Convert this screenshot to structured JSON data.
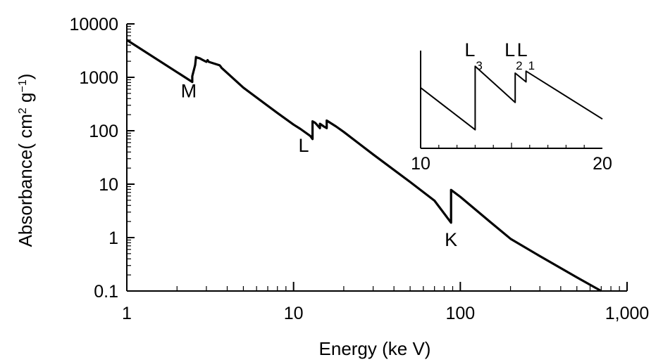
{
  "chart_data": [
    {
      "type": "line",
      "xlabel": "Energy (ke V)",
      "ylabel": {
        "text": "Absorbance",
        "unit_open": "( cm",
        "unit_exp1": "2",
        "unit_g": " g",
        "unit_exp2": "−1",
        "unit_close": ")"
      },
      "x_scale": "log",
      "y_scale": "log",
      "xlim": [
        1,
        1000
      ],
      "ylim": [
        0.1,
        10000
      ],
      "x_ticks": [
        {
          "value": 1,
          "label": "1"
        },
        {
          "value": 10,
          "label": "10"
        },
        {
          "value": 100,
          "label": "100"
        },
        {
          "value": 1000,
          "label": "1,000"
        }
      ],
      "y_ticks": [
        {
          "value": 0.1,
          "label": "0.1"
        },
        {
          "value": 1,
          "label": "1"
        },
        {
          "value": 10,
          "label": "10"
        },
        {
          "value": 100,
          "label": "100"
        },
        {
          "value": 1000,
          "label": "1000"
        },
        {
          "value": 10000,
          "label": "10000"
        }
      ],
      "grid": false,
      "series": [
        {
          "color": "#000000",
          "x": [
            1.0,
            2.47,
            2.47,
            2.57,
            2.6,
            2.63,
            2.75,
            2.8,
            3.0,
            3.05,
            3.1,
            3.6,
            3.65,
            3.7,
            5.0,
            8.0,
            10.0,
            11.0,
            12.6,
            13.0,
            13.0,
            13.5,
            14.4,
            14.4,
            15.2,
            15.8,
            15.8,
            18.0,
            20.0,
            30.0,
            50.0,
            70.0,
            88.0,
            88.0,
            100.0,
            150.0,
            200.0,
            300.0,
            500.0,
            700.0
          ],
          "y": [
            5000,
            820,
            1050,
            1700,
            2400,
            2350,
            2250,
            2180,
            1950,
            2100,
            1950,
            1680,
            1600,
            1500,
            640,
            215,
            130,
            108,
            80,
            70,
            150,
            140,
            112,
            135,
            120,
            112,
            155,
            120,
            95,
            36,
            11,
            4.9,
            1.9,
            7.8,
            5.8,
            2.0,
            0.95,
            0.45,
            0.18,
            0.1
          ]
        }
      ],
      "annotations": [
        {
          "text": "M",
          "x": 2.35,
          "y": 420
        },
        {
          "text": "L",
          "x": 11.5,
          "y": 40
        },
        {
          "text": "K",
          "x": 88.0,
          "y": 0.7
        }
      ]
    },
    {
      "type": "line",
      "role": "inset",
      "x_scale": "linear",
      "xlim": [
        10,
        20
      ],
      "x_ticks": [
        {
          "value": 10,
          "label": "10"
        },
        {
          "value": 20,
          "label": "20"
        }
      ],
      "series": [
        {
          "color": "#000000",
          "x": [
            10.0,
            13.0,
            13.0,
            15.2,
            15.2,
            15.8,
            15.8,
            20.0
          ],
          "y": [
            6.2,
            1.9,
            8.4,
            4.7,
            7.7,
            6.8,
            7.9,
            3.0
          ]
        }
      ],
      "edge_labels": [
        {
          "letter": "L",
          "sub": "3",
          "x": 13.0
        },
        {
          "letter": "L",
          "sub": "2",
          "x": 15.2
        },
        {
          "letter": "L",
          "sub": "1",
          "x": 15.8
        }
      ]
    }
  ]
}
